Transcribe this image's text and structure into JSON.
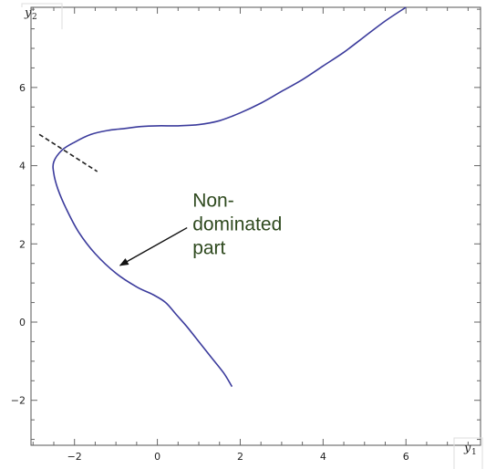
{
  "chart_data": {
    "type": "line",
    "title": "",
    "xlabel": "y1",
    "ylabel": "y2",
    "xlabel_var": "y",
    "xlabel_sub": "1",
    "ylabel_var": "y",
    "ylabel_sub": "2",
    "xlim": [
      -3.05,
      7.8
    ],
    "ylim": [
      -3.15,
      8.05
    ],
    "x_ticks": [
      -2,
      0,
      2,
      4,
      6
    ],
    "y_ticks": [
      -2,
      0,
      2,
      4,
      6
    ],
    "x_tick_labels": [
      "−2",
      "0",
      "2",
      "4",
      "6"
    ],
    "y_tick_labels": [
      "−2",
      "0",
      "2",
      "4",
      "6"
    ],
    "minor_step": 0.5,
    "grid": false,
    "series": [
      {
        "color": "#3b3b9c",
        "x": [
          1.8,
          1.6,
          1.3,
          1.0,
          0.7,
          0.45,
          0.2,
          -0.1,
          -0.5,
          -1.0,
          -1.5,
          -1.9,
          -2.2,
          -2.4,
          -2.5,
          -2.5,
          -2.3,
          -2.0,
          -1.6,
          -1.2,
          -0.8,
          -0.4,
          0.0,
          0.5,
          1.0,
          1.5,
          2.0,
          2.5,
          3.0,
          3.5,
          4.0,
          4.5,
          5.0,
          5.5,
          6.0
        ],
        "y": [
          -1.65,
          -1.3,
          -0.9,
          -0.5,
          -0.1,
          0.2,
          0.5,
          0.7,
          0.9,
          1.25,
          1.75,
          2.3,
          2.9,
          3.4,
          3.8,
          4.1,
          4.4,
          4.6,
          4.8,
          4.9,
          4.95,
          5.0,
          5.02,
          5.02,
          5.05,
          5.15,
          5.35,
          5.6,
          5.9,
          6.2,
          6.55,
          6.9,
          7.3,
          7.7,
          8.05
        ]
      }
    ],
    "dashed_line": {
      "x": [
        -2.85,
        -1.45
      ],
      "y": [
        4.8,
        3.85
      ]
    },
    "annotations": [
      {
        "lines": [
          "Non-",
          "dominated",
          "part"
        ],
        "x": 0.85,
        "y": 2.95,
        "arrow_to": [
          -0.9,
          1.45
        ]
      }
    ]
  }
}
